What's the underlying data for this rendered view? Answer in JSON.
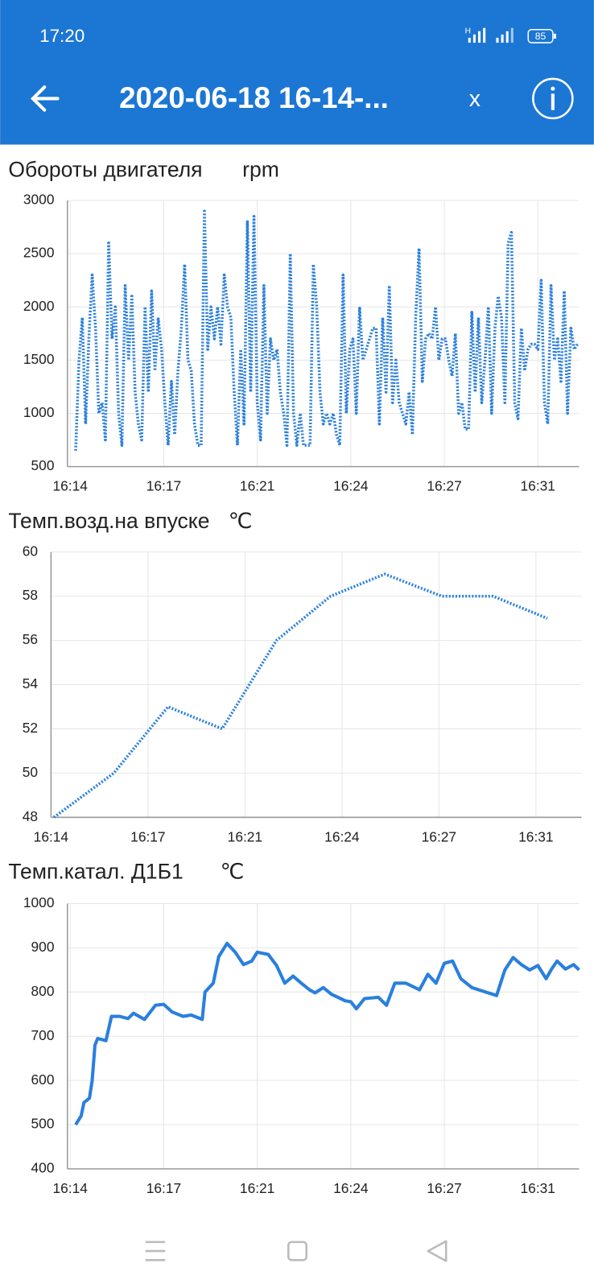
{
  "status_bar": {
    "time": "17:20",
    "network": "H",
    "battery": "85"
  },
  "app_bar": {
    "title": "2020-06-18 16-14-...",
    "close": "x"
  },
  "chart_data": [
    {
      "type": "line",
      "title": "Обороты двигателя",
      "unit": "rpm",
      "color": "#2a7fde",
      "line_style": "dotted",
      "grid": true,
      "xlim": [
        974.1,
        992.7
      ],
      "ylim": [
        500,
        3000
      ],
      "yticks": [
        500,
        1000,
        1500,
        2000,
        2500,
        3000
      ],
      "xticks": [
        {
          "value": 974.2,
          "label": "16:14"
        },
        {
          "value": 977.6,
          "label": "16:17"
        },
        {
          "value": 981.0,
          "label": "16:21"
        },
        {
          "value": 984.4,
          "label": "16:24"
        },
        {
          "value": 987.8,
          "label": "16:27"
        },
        {
          "value": 991.2,
          "label": "16:31"
        }
      ],
      "x": [
        974.4,
        974.52,
        974.64,
        974.76,
        974.88,
        975,
        975.12,
        975.24,
        975.36,
        975.48,
        975.6,
        975.72,
        975.84,
        975.96,
        976.08,
        976.2,
        976.32,
        976.44,
        976.56,
        976.68,
        976.8,
        976.92,
        977.04,
        977.16,
        977.28,
        977.4,
        977.52,
        977.64,
        977.76,
        977.88,
        978,
        978.12,
        978.24,
        978.36,
        978.48,
        978.6,
        978.72,
        978.84,
        978.96,
        979.08,
        979.2,
        979.32,
        979.44,
        979.56,
        979.68,
        979.8,
        979.92,
        980.04,
        980.16,
        980.28,
        980.4,
        980.52,
        980.64,
        980.76,
        980.88,
        981,
        981.12,
        981.24,
        981.36,
        981.48,
        981.6,
        981.72,
        981.84,
        981.96,
        982.08,
        982.2,
        982.32,
        982.44,
        982.56,
        982.68,
        982.8,
        982.92,
        983.04,
        983.16,
        983.28,
        983.4,
        983.52,
        983.64,
        983.76,
        983.88,
        984,
        984.12,
        984.24,
        984.36,
        984.48,
        984.6,
        984.72,
        984.84,
        984.96,
        985.08,
        985.2,
        985.32,
        985.44,
        985.56,
        985.68,
        985.8,
        985.92,
        986.04,
        986.16,
        986.28,
        986.4,
        986.52,
        986.64,
        986.76,
        986.88,
        987,
        987.12,
        987.24,
        987.36,
        987.48,
        987.6,
        987.72,
        987.84,
        987.96,
        988.08,
        988.2,
        988.32,
        988.44,
        988.56,
        988.68,
        988.8,
        988.92,
        989.04,
        989.16,
        989.28,
        989.4,
        989.52,
        989.64,
        989.76,
        989.88,
        990,
        990.12,
        990.24,
        990.36,
        990.48,
        990.6,
        990.72,
        990.84,
        990.96,
        991.08,
        991.2,
        991.32,
        991.44,
        991.56,
        991.68,
        991.8,
        991.92,
        992.04,
        992.16,
        992.28,
        992.4,
        992.52,
        992.64
      ],
      "values": [
        650,
        1500,
        1900,
        900,
        1700,
        2300,
        1800,
        1000,
        1100,
        750,
        2600,
        1700,
        2000,
        1000,
        700,
        2200,
        1500,
        2100,
        1200,
        900,
        750,
        2000,
        1200,
        2150,
        1400,
        1900,
        1600,
        1100,
        700,
        1300,
        800,
        1400,
        1800,
        2400,
        1500,
        1400,
        900,
        700,
        700,
        2900,
        1600,
        2000,
        1700,
        2000,
        1650,
        2300,
        2000,
        1900,
        1200,
        700,
        1600,
        900,
        2800,
        1200,
        2850,
        1100,
        750,
        2200,
        1000,
        1700,
        1500,
        1600,
        1200,
        1000,
        700,
        2500,
        1000,
        700,
        1000,
        700,
        700,
        700,
        2400,
        2000,
        1200,
        900,
        1000,
        900,
        1000,
        800,
        700,
        2300,
        1000,
        1600,
        1700,
        1000,
        2000,
        1500,
        1600,
        1700,
        1800,
        1800,
        900,
        1900,
        1200,
        2200,
        1100,
        1500,
        1100,
        1000,
        900,
        1200,
        800,
        1900,
        2550,
        1300,
        1700,
        1750,
        1700,
        2000,
        1500,
        1700,
        1700,
        1500,
        1350,
        1750,
        1000,
        1100,
        850,
        850,
        1950,
        1200,
        1900,
        1100,
        1500,
        2000,
        1000,
        1800,
        2100,
        1900,
        1100,
        2600,
        2700,
        1100,
        950,
        1800,
        1400,
        1600,
        1650,
        1650,
        1600,
        2250,
        1100,
        900,
        2200,
        1500,
        1700,
        1300,
        2150,
        1000,
        1800,
        1600,
        1650
      ]
    },
    {
      "type": "line",
      "title": "Темп.возд.на впуске",
      "unit": "℃",
      "color": "#2a7fde",
      "line_style": "dotted",
      "grid": true,
      "xlim": [
        974.2,
        992.8
      ],
      "ylim": [
        48,
        60
      ],
      "yticks": [
        48,
        50,
        52,
        54,
        56,
        58,
        60
      ],
      "xticks": [
        {
          "value": 974.2,
          "label": "16:14"
        },
        {
          "value": 977.6,
          "label": "16:17"
        },
        {
          "value": 981.0,
          "label": "16:21"
        },
        {
          "value": 984.4,
          "label": "16:24"
        },
        {
          "value": 987.8,
          "label": "16:27"
        },
        {
          "value": 991.2,
          "label": "16:31"
        }
      ],
      "x": [
        974.3,
        976.4,
        978.3,
        980.2,
        982.1,
        984,
        985.9,
        987.9,
        989.7,
        991.6
      ],
      "values": [
        48,
        50,
        53,
        52,
        56,
        58,
        59,
        58,
        58,
        57
      ]
    },
    {
      "type": "line",
      "title": "Темп.катал. Д1Б1",
      "unit": "℃",
      "color": "#2a7fde",
      "line_style": "solid",
      "grid": true,
      "xlim": [
        974.1,
        992.7
      ],
      "ylim": [
        400,
        1000
      ],
      "yticks": [
        400,
        500,
        600,
        700,
        800,
        900,
        1000
      ],
      "xticks": [
        {
          "value": 974.2,
          "label": "16:14"
        },
        {
          "value": 977.6,
          "label": "16:17"
        },
        {
          "value": 981.0,
          "label": "16:21"
        },
        {
          "value": 984.4,
          "label": "16:24"
        },
        {
          "value": 987.8,
          "label": "16:27"
        },
        {
          "value": 991.2,
          "label": "16:31"
        }
      ],
      "x": [
        974.4,
        974.6,
        974.7,
        974.9,
        975.0,
        975.1,
        975.2,
        975.5,
        975.7,
        976.0,
        976.3,
        976.5,
        976.9,
        977.3,
        977.6,
        977.9,
        978.3,
        978.6,
        979.0,
        979.1,
        979.4,
        979.6,
        979.9,
        980.2,
        980.5,
        980.8,
        981.0,
        981.4,
        981.7,
        982.0,
        982.3,
        982.6,
        982.9,
        983.1,
        983.4,
        983.7,
        984.2,
        984.4,
        984.6,
        984.9,
        985.4,
        985.7,
        986.0,
        986.4,
        986.9,
        987.2,
        987.5,
        987.8,
        988.1,
        988.4,
        988.8,
        989.3,
        989.7,
        990.0,
        990.3,
        990.6,
        990.9,
        991.2,
        991.5,
        991.7,
        991.9,
        992.2,
        992.5,
        992.7
      ],
      "values": [
        500,
        520,
        550,
        560,
        600,
        680,
        695,
        690,
        745,
        745,
        740,
        752,
        738,
        770,
        772,
        755,
        745,
        748,
        738,
        800,
        820,
        880,
        910,
        890,
        862,
        870,
        890,
        885,
        860,
        820,
        836,
        820,
        805,
        798,
        810,
        795,
        780,
        778,
        762,
        785,
        788,
        770,
        820,
        820,
        805,
        840,
        820,
        865,
        870,
        830,
        810,
        800,
        792,
        850,
        878,
        862,
        850,
        860,
        830,
        852,
        870,
        852,
        862,
        850
      ]
    }
  ]
}
